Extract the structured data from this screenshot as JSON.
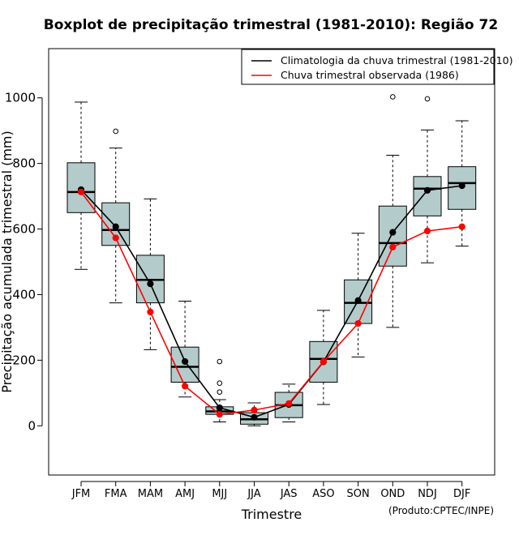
{
  "chart_data": {
    "type": "boxplot",
    "title": "Boxplot de precipitação trimestral (1981-2010): Região 72",
    "xlabel": "Trimestre",
    "ylabel": "Precipitação acumulada trimestral (mm)",
    "ylim": [
      -150,
      1150
    ],
    "yticks": [
      0,
      200,
      400,
      600,
      800,
      1000
    ],
    "categories": [
      "JFM",
      "FMA",
      "MAM",
      "AMJ",
      "MJJ",
      "JJA",
      "JAS",
      "ASO",
      "SON",
      "OND",
      "NDJ",
      "DJF"
    ],
    "boxes": [
      {
        "min": 477,
        "q1": 650,
        "median": 713,
        "q3": 802,
        "max": 987,
        "outliers": []
      },
      {
        "min": 375,
        "q1": 550,
        "median": 597,
        "q3": 680,
        "max": 847,
        "outliers": [
          898
        ]
      },
      {
        "min": 232,
        "q1": 375,
        "median": 445,
        "q3": 520,
        "max": 692,
        "outliers": []
      },
      {
        "min": 88,
        "q1": 133,
        "median": 180,
        "q3": 240,
        "max": 380,
        "outliers": []
      },
      {
        "min": 12,
        "q1": 35,
        "median": 44,
        "q3": 58,
        "max": 80,
        "outliers": [
          103,
          130,
          196
        ]
      },
      {
        "min": 0,
        "q1": 5,
        "median": 20,
        "q3": 40,
        "max": 70,
        "outliers": []
      },
      {
        "min": 12,
        "q1": 25,
        "median": 63,
        "q3": 102,
        "max": 127,
        "outliers": []
      },
      {
        "min": 65,
        "q1": 133,
        "median": 204,
        "q3": 257,
        "max": 352,
        "outliers": []
      },
      {
        "min": 210,
        "q1": 312,
        "median": 375,
        "q3": 445,
        "max": 587,
        "outliers": []
      },
      {
        "min": 300,
        "q1": 487,
        "median": 557,
        "q3": 670,
        "max": 825,
        "outliers": [
          1003
        ]
      },
      {
        "min": 497,
        "q1": 640,
        "median": 723,
        "q3": 760,
        "max": 902,
        "outliers": [
          997
        ]
      },
      {
        "min": 548,
        "q1": 660,
        "median": 740,
        "q3": 790,
        "max": 930,
        "outliers": []
      }
    ],
    "series": [
      {
        "name": "Climatologia da chuva trimestral (1981-2010)",
        "color": "#000000",
        "values": [
          720,
          607,
          433,
          196,
          55,
          26,
          65,
          195,
          382,
          590,
          718,
          732
        ]
      },
      {
        "name": "Chuva trimestral observada (1986)",
        "color": "#ff0000",
        "values": [
          713,
          573,
          347,
          121,
          35,
          48,
          68,
          196,
          312,
          545,
          594,
          607
        ]
      }
    ],
    "box_fill": "#b4cbcb",
    "legend_position": "top-right",
    "credit": "(Produto:CPTEC/INPE)"
  }
}
